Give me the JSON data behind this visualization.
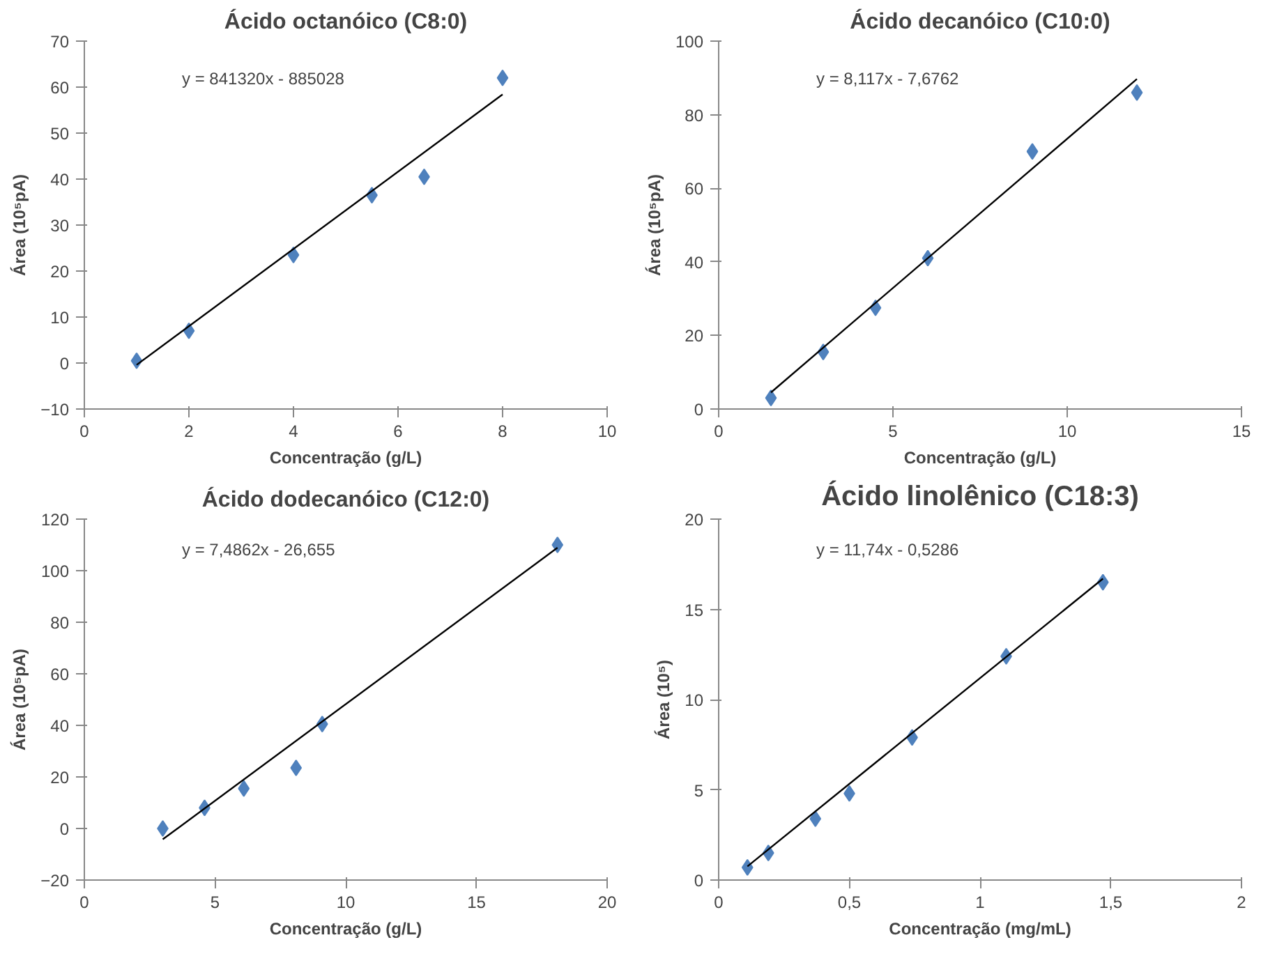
{
  "chart_data": [
    {
      "type": "scatter",
      "title": "Ácido octanóico (C8:0)",
      "xlabel": "Concentração (g/L)",
      "ylabel": "Área (10⁵pA)",
      "annotations": [
        "y = 841320x - 885028"
      ],
      "xlim": [
        0,
        10
      ],
      "ylim": [
        -10,
        70
      ],
      "xticks": [
        0,
        2,
        4,
        6,
        8,
        10
      ],
      "yticks": [
        -10,
        0,
        10,
        20,
        30,
        40,
        50,
        60,
        70
      ],
      "grid": false,
      "series": [
        {
          "marker": "diamond",
          "color": "#4f81bd",
          "x": [
            1,
            2,
            4,
            5.5,
            6.5,
            8
          ],
          "values": [
            0.5,
            7,
            23.5,
            36.5,
            40.5,
            62
          ]
        },
        {
          "type": "line",
          "color": "#000000",
          "x": [
            1,
            8
          ],
          "values": [
            -0.4,
            58.4
          ]
        }
      ]
    },
    {
      "type": "scatter",
      "title": "Ácido decanóico (C10:0)",
      "xlabel": "Concentração (g/L)",
      "ylabel": "Área (10⁵pA)",
      "annotations": [
        "y = 8,117x - 7,6762"
      ],
      "xlim": [
        0,
        15
      ],
      "ylim": [
        0,
        100
      ],
      "xticks": [
        0,
        5,
        10,
        15
      ],
      "yticks": [
        0,
        20,
        40,
        60,
        80,
        100
      ],
      "grid": false,
      "series": [
        {
          "marker": "diamond",
          "color": "#4f81bd",
          "x": [
            1.5,
            3,
            4.5,
            6,
            9,
            12
          ],
          "values": [
            3,
            15.5,
            27.5,
            41,
            70,
            86
          ]
        },
        {
          "type": "line",
          "color": "#000000",
          "x": [
            1.5,
            12
          ],
          "values": [
            4.5,
            89.7
          ]
        }
      ]
    },
    {
      "type": "scatter",
      "title": "Ácido dodecanóico (C12:0)",
      "xlabel": "Concentração (g/L)",
      "ylabel": "Área (10⁵pA)",
      "annotations": [
        "y = 7,4862x - 26,655"
      ],
      "xlim": [
        0,
        20
      ],
      "ylim": [
        -20,
        120
      ],
      "xticks": [
        0,
        5,
        10,
        15,
        20
      ],
      "yticks": [
        -20,
        0,
        20,
        40,
        60,
        80,
        100,
        120
      ],
      "grid": false,
      "series": [
        {
          "marker": "diamond",
          "color": "#4f81bd",
          "x": [
            3,
            4.6,
            6.1,
            8.1,
            9.1,
            18.1
          ],
          "values": [
            0,
            8,
            15.5,
            23.5,
            40.5,
            110
          ]
        },
        {
          "type": "line",
          "color": "#000000",
          "x": [
            3,
            18.1
          ],
          "values": [
            -4.2,
            108.9
          ]
        }
      ]
    },
    {
      "type": "scatter",
      "title": "Ácido linolênico (C18:3)",
      "xlabel": "Concentração (mg/mL)",
      "ylabel": "Área (10⁵)",
      "annotations": [
        "y = 11,74x - 0,5286"
      ],
      "xlim": [
        0,
        2
      ],
      "ylim": [
        0,
        20
      ],
      "xticks": [
        0,
        {
          "value": 0.5,
          "label": "0,5"
        },
        1,
        {
          "value": 1.5,
          "label": "1,5"
        },
        2
      ],
      "yticks": [
        0,
        5,
        10,
        15,
        20
      ],
      "grid": false,
      "series": [
        {
          "marker": "diamond",
          "color": "#4f81bd",
          "x": [
            0.11,
            0.19,
            0.37,
            0.5,
            0.74,
            1.1,
            1.47
          ],
          "values": [
            0.7,
            1.5,
            3.4,
            4.8,
            7.9,
            12.4,
            16.5
          ]
        },
        {
          "type": "line",
          "color": "#000000",
          "x": [
            0.11,
            1.47
          ],
          "values": [
            0.76,
            16.7
          ]
        }
      ]
    }
  ]
}
